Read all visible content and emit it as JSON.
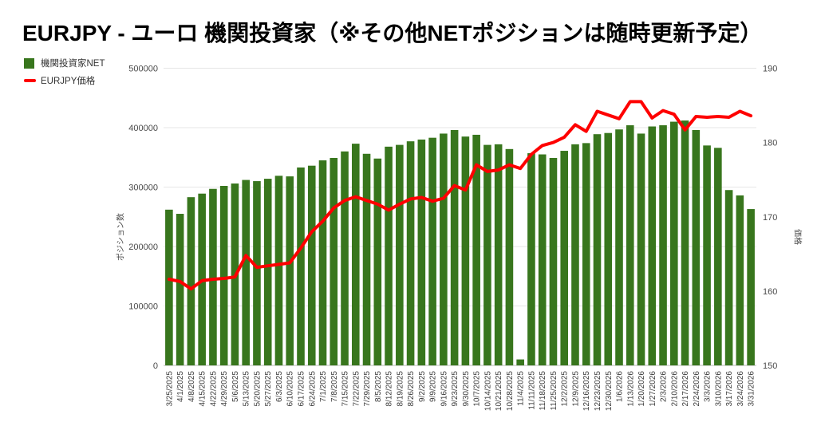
{
  "title": "EURJPY - ユーロ 機関投資家（※その他NETポジションは随時更新予定）",
  "legend": {
    "items": [
      {
        "label": "機関投資家NET",
        "color": "#38761d",
        "marker": "bar-swatch-icon"
      },
      {
        "label": "EURJPY価格",
        "color": "#fe0000",
        "marker": "line-swatch-icon"
      }
    ]
  },
  "chart_data": {
    "type": "bar",
    "subtype": "bar+line combo, dual axis",
    "grid": true,
    "legend_position": "top-left",
    "categories": [
      "3/25/2025",
      "4/1/2025",
      "4/8/2025",
      "4/15/2025",
      "4/22/2025",
      "4/29/2025",
      "5/6/2025",
      "5/13/2025",
      "5/20/2025",
      "5/27/2025",
      "6/3/2025",
      "6/10/2025",
      "6/17/2025",
      "6/24/2025",
      "7/1/2025",
      "7/8/2025",
      "7/15/2025",
      "7/22/2025",
      "7/29/2025",
      "8/5/2025",
      "8/12/2025",
      "8/19/2025",
      "8/26/2025",
      "9/2/2025",
      "9/9/2025",
      "9/16/2025",
      "9/23/2025",
      "9/30/2025",
      "10/7/2025",
      "10/14/2025",
      "10/21/2025",
      "10/28/2025",
      "11/4/2025",
      "11/11/2025",
      "11/18/2025",
      "11/25/2025",
      "12/2/2025",
      "12/9/2025",
      "12/16/2025",
      "12/23/2025",
      "12/30/2025",
      "1/6/2026",
      "1/13/2026",
      "1/20/2026",
      "1/27/2026",
      "2/3/2026",
      "2/10/2026",
      "2/17/2026",
      "2/24/2026",
      "3/3/2026",
      "3/10/2026",
      "3/17/2026",
      "3/24/2026",
      "3/31/2026"
    ],
    "series": [
      {
        "name": "機関投資家NET",
        "type": "bar",
        "axis": "left",
        "color": "#38761d",
        "values": [
          262000,
          255000,
          283000,
          289000,
          297000,
          302000,
          306000,
          312000,
          310000,
          314000,
          319000,
          318000,
          333000,
          336000,
          345000,
          349000,
          360000,
          373000,
          356000,
          348000,
          368000,
          371000,
          377000,
          380000,
          383000,
          390000,
          396000,
          385000,
          388000,
          371000,
          372000,
          364000,
          10000,
          357000,
          355000,
          349000,
          361000,
          372000,
          374000,
          389000,
          391000,
          397000,
          404000,
          390000,
          402000,
          404000,
          410000,
          412000,
          396000,
          370000,
          366000,
          295000,
          286000,
          263000
        ]
      },
      {
        "name": "EURJPY価格",
        "type": "line",
        "axis": "right",
        "color": "#fe0000",
        "values": [
          161.6,
          161.3,
          160.3,
          161.4,
          161.6,
          161.7,
          161.9,
          164.8,
          163.2,
          163.4,
          163.6,
          163.8,
          165.8,
          168.0,
          169.4,
          171.2,
          172.2,
          172.7,
          172.2,
          171.7,
          170.9,
          171.7,
          172.4,
          172.6,
          172.1,
          172.5,
          174.2,
          173.6,
          177.0,
          176.1,
          176.3,
          177.0,
          176.5,
          178.4,
          179.6,
          180.0,
          180.7,
          182.4,
          181.5,
          184.2,
          183.7,
          183.2,
          185.5,
          185.5,
          183.3,
          184.3,
          183.8,
          181.7,
          183.5,
          183.4,
          183.5,
          183.4,
          184.2,
          183.6
        ]
      }
    ],
    "left_axis": {
      "title": "ポジション数",
      "min": 0,
      "max": 500000,
      "ticks": [
        "0",
        "100000",
        "200000",
        "300000",
        "400000",
        "500000"
      ]
    },
    "right_axis": {
      "title": "価格",
      "min": 150,
      "max": 190,
      "ticks": [
        "150",
        "160",
        "170",
        "180",
        "190"
      ]
    }
  }
}
